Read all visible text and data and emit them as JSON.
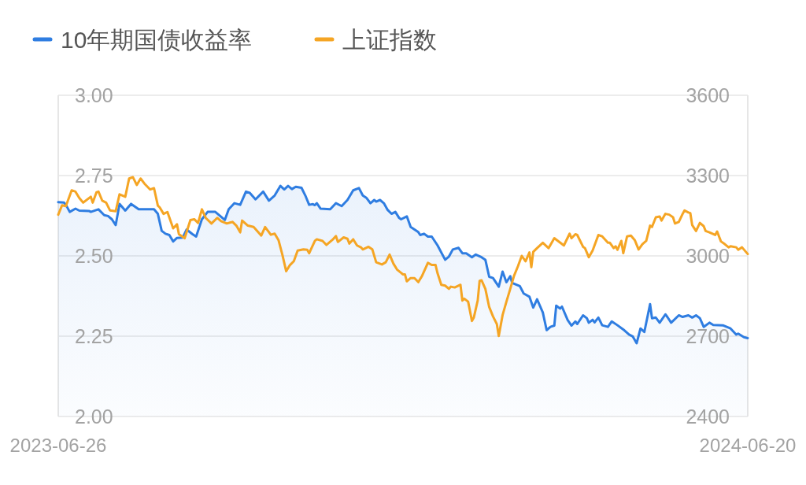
{
  "chart_data": {
    "type": "line",
    "legend": "top left",
    "grid": "y",
    "xlim": [
      "2023-06-26",
      "2024-06-20"
    ],
    "xticks": [
      "2023-06-26",
      "2024-06-20"
    ],
    "ylim": [
      2,
      3
    ],
    "yticks": [
      {
        "value": 2,
        "label": "2.00"
      },
      {
        "value": 2.25,
        "label": "2.25"
      },
      {
        "value": 2.5,
        "label": "2.50"
      },
      {
        "value": 2.75,
        "label": "2.75"
      },
      {
        "value": 3,
        "label": "3.00"
      }
    ],
    "y2lim": [
      2400,
      3600
    ],
    "y2ticks": [
      2400,
      2700,
      3000,
      3300,
      3600
    ],
    "series": [
      {
        "name": "10年期国债收益率",
        "type": "area",
        "color": "#2f7de1",
        "x": [
          "2023-06-26",
          "2023-06-29",
          "2023-06-30",
          "2023-07-02",
          "2023-07-05",
          "2023-07-07",
          "2023-07-12",
          "2023-07-13",
          "2023-07-17",
          "2023-07-20",
          "2023-07-22",
          "2023-07-24",
          "2023-07-26",
          "2023-07-28",
          "2023-07-31",
          "2023-08-03",
          "2023-08-07",
          "2023-08-15",
          "2023-08-17",
          "2023-08-19",
          "2023-08-21",
          "2023-08-23",
          "2023-08-25",
          "2023-08-27",
          "2023-08-30",
          "2023-09-01",
          "2023-09-04",
          "2023-09-06",
          "2023-09-09",
          "2023-09-12",
          "2023-09-16",
          "2023-09-21",
          "2023-09-23",
          "2023-09-26",
          "2023-09-29",
          "2023-10-02",
          "2023-10-04",
          "2023-10-07",
          "2023-10-11",
          "2023-10-14",
          "2023-10-17",
          "2023-10-20",
          "2023-10-22",
          "2023-10-24",
          "2023-10-26",
          "2023-10-28",
          "2023-10-31",
          "2023-11-02",
          "2023-11-04",
          "2023-11-06",
          "2023-11-07",
          "2023-11-08",
          "2023-11-10",
          "2023-11-15",
          "2023-11-18",
          "2023-11-21",
          "2023-11-24",
          "2023-11-27",
          "2023-11-30",
          "2023-12-02",
          "2023-12-04",
          "2023-12-06",
          "2023-12-08",
          "2023-12-09",
          "2023-12-11",
          "2023-12-13",
          "2023-12-15",
          "2023-12-17",
          "2023-12-19",
          "2023-12-21",
          "2023-12-22",
          "2023-12-25",
          "2023-12-27",
          "2023-12-29",
          "2023-12-31",
          "2024-01-01",
          "2024-01-03",
          "2024-01-05",
          "2024-01-07",
          "2024-01-10",
          "2024-01-14",
          "2024-01-16",
          "2024-01-18",
          "2024-01-21",
          "2024-01-23",
          "2024-01-25",
          "2024-01-28",
          "2024-01-30",
          "2024-02-02",
          "2024-02-04",
          "2024-02-06",
          "2024-02-08",
          "2024-02-11",
          "2024-02-13",
          "2024-02-15",
          "2024-02-17",
          "2024-02-18",
          "2024-02-22",
          "2024-02-24",
          "2024-02-27",
          "2024-02-29",
          "2024-03-02",
          "2024-03-05",
          "2024-03-07",
          "2024-03-09",
          "2024-03-11",
          "2024-03-12",
          "2024-03-14",
          "2024-03-15",
          "2024-03-18",
          "2024-03-20",
          "2024-03-22",
          "2024-03-23",
          "2024-03-26",
          "2024-03-28",
          "2024-03-29",
          "2024-03-31",
          "2024-04-01",
          "2024-04-03",
          "2024-04-05",
          "2024-04-08",
          "2024-04-10",
          "2024-04-13",
          "2024-04-16",
          "2024-04-19",
          "2024-04-21",
          "2024-04-23",
          "2024-04-25",
          "2024-04-27",
          "2024-04-30",
          "2024-05-01",
          "2024-05-03",
          "2024-05-05",
          "2024-05-08",
          "2024-05-09",
          "2024-05-11",
          "2024-05-15",
          "2024-05-17",
          "2024-05-20",
          "2024-05-22",
          "2024-05-24",
          "2024-05-26",
          "2024-05-28",
          "2024-05-31",
          "2024-06-02",
          "2024-06-07",
          "2024-06-11",
          "2024-06-14",
          "2024-06-15",
          "2024-06-18",
          "2024-06-20"
        ],
        "values": [
          2.667,
          2.666,
          2.659,
          2.637,
          2.647,
          2.641,
          2.64,
          2.637,
          2.645,
          2.627,
          2.624,
          2.614,
          2.596,
          2.662,
          2.641,
          2.662,
          2.645,
          2.645,
          2.631,
          2.578,
          2.569,
          2.565,
          2.545,
          2.556,
          2.557,
          2.582,
          2.568,
          2.56,
          2.614,
          2.637,
          2.637,
          2.612,
          2.645,
          2.664,
          2.659,
          2.7,
          2.696,
          2.676,
          2.7,
          2.672,
          2.688,
          2.718,
          2.707,
          2.718,
          2.708,
          2.715,
          2.712,
          2.688,
          2.659,
          2.661,
          2.658,
          2.664,
          2.647,
          2.645,
          2.664,
          2.655,
          2.674,
          2.704,
          2.711,
          2.688,
          2.68,
          2.664,
          2.674,
          2.669,
          2.674,
          2.664,
          2.643,
          2.631,
          2.637,
          2.618,
          2.614,
          2.623,
          2.59,
          2.582,
          2.574,
          2.565,
          2.569,
          2.56,
          2.56,
          2.533,
          2.488,
          2.498,
          2.52,
          2.525,
          2.508,
          2.508,
          2.496,
          2.504,
          2.496,
          2.488,
          2.435,
          2.431,
          2.404,
          2.451,
          2.418,
          2.437,
          2.416,
          2.406,
          2.383,
          2.373,
          2.339,
          2.365,
          2.324,
          2.269,
          2.279,
          2.283,
          2.345,
          2.336,
          2.342,
          2.3,
          2.283,
          2.296,
          2.288,
          2.315,
          2.306,
          2.292,
          2.301,
          2.293,
          2.308,
          2.284,
          2.279,
          2.296,
          2.284,
          2.271,
          2.255,
          2.249,
          2.228,
          2.274,
          2.263,
          2.35,
          2.306,
          2.308,
          2.292,
          2.318,
          2.31,
          2.292,
          2.315,
          2.31,
          2.315,
          2.308,
          2.315,
          2.306,
          2.279,
          2.292,
          2.285,
          2.284,
          2.274,
          2.255,
          2.258,
          2.247,
          2.244
        ]
      },
      {
        "name": "上证指数",
        "type": "line",
        "axis": "y2",
        "color": "#f5a524",
        "x": [
          "2023-06-26",
          "2023-06-28",
          "2023-06-30",
          "2023-07-03",
          "2023-07-05",
          "2023-07-07",
          "2023-07-09",
          "2023-07-13",
          "2023-07-14",
          "2023-07-16",
          "2023-07-17",
          "2023-07-19",
          "2023-07-21",
          "2023-07-23",
          "2023-07-26",
          "2023-07-28",
          "2023-07-31",
          "2023-08-02",
          "2023-08-04",
          "2023-08-06",
          "2023-08-08",
          "2023-08-10",
          "2023-08-13",
          "2023-08-15",
          "2023-08-17",
          "2023-08-18",
          "2023-08-20",
          "2023-08-22",
          "2023-08-25",
          "2023-08-27",
          "2023-08-28",
          "2023-08-31",
          "2023-09-03",
          "2023-09-05",
          "2023-09-07",
          "2023-09-09",
          "2023-09-11",
          "2023-09-14",
          "2023-09-17",
          "2023-09-19",
          "2023-09-22",
          "2023-09-24",
          "2023-09-25",
          "2023-09-27",
          "2023-09-29",
          "2023-09-30",
          "2023-10-03",
          "2023-10-06",
          "2023-10-10",
          "2023-10-12",
          "2023-10-15",
          "2023-10-17",
          "2023-10-19",
          "2023-10-21",
          "2023-10-23",
          "2023-10-25",
          "2023-10-27",
          "2023-10-29",
          "2023-11-01",
          "2023-11-03",
          "2023-11-04",
          "2023-11-07",
          "2023-11-08",
          "2023-11-11",
          "2023-11-13",
          "2023-11-16",
          "2023-11-18",
          "2023-11-19",
          "2023-11-22",
          "2023-11-24",
          "2023-11-25",
          "2023-11-27",
          "2023-11-29",
          "2023-12-01",
          "2023-12-02",
          "2023-12-05",
          "2023-12-07",
          "2023-12-09",
          "2023-12-12",
          "2023-12-14",
          "2023-12-16",
          "2023-12-18",
          "2023-12-20",
          "2023-12-23",
          "2023-12-24",
          "2023-12-25",
          "2023-12-27",
          "2023-12-29",
          "2023-12-31",
          "2024-01-02",
          "2024-01-05",
          "2024-01-07",
          "2024-01-09",
          "2024-01-10",
          "2024-01-12",
          "2024-01-14",
          "2024-01-16",
          "2024-01-17",
          "2024-01-19",
          "2024-01-22",
          "2024-01-23",
          "2024-01-24",
          "2024-01-26",
          "2024-01-28",
          "2024-01-29",
          "2024-01-31",
          "2024-02-01",
          "2024-02-02",
          "2024-02-04",
          "2024-02-06",
          "2024-02-08",
          "2024-02-10",
          "2024-02-11",
          "2024-02-13",
          "2024-02-15",
          "2024-02-17",
          "2024-02-19",
          "2024-02-21",
          "2024-02-23",
          "2024-02-25",
          "2024-02-27",
          "2024-02-28",
          "2024-02-29",
          "2024-03-02",
          "2024-03-05",
          "2024-03-08",
          "2024-03-11",
          "2024-03-16",
          "2024-03-19",
          "2024-03-20",
          "2024-03-22",
          "2024-03-23",
          "2024-03-26",
          "2024-03-27",
          "2024-03-29",
          "2024-03-31",
          "2024-04-03",
          "2024-04-05",
          "2024-04-08",
          "2024-04-09",
          "2024-04-11",
          "2024-04-12",
          "2024-04-13",
          "2024-04-15",
          "2024-04-16",
          "2024-04-18",
          "2024-04-20",
          "2024-04-22",
          "2024-04-24",
          "2024-04-26",
          "2024-04-28",
          "2024-04-30",
          "2024-05-01",
          "2024-05-03",
          "2024-05-05",
          "2024-05-06",
          "2024-05-08",
          "2024-05-10",
          "2024-05-12",
          "2024-05-13",
          "2024-05-15",
          "2024-05-17",
          "2024-05-18",
          "2024-05-20",
          "2024-05-21",
          "2024-05-22",
          "2024-05-24",
          "2024-05-26",
          "2024-05-28",
          "2024-05-29",
          "2024-05-31",
          "2024-06-03",
          "2024-06-04",
          "2024-06-06",
          "2024-06-08",
          "2024-06-10",
          "2024-06-11",
          "2024-06-14",
          "2024-06-15",
          "2024-06-17",
          "2024-06-20"
        ],
        "values": [
          3154,
          3189,
          3186,
          3245,
          3240,
          3216,
          3199,
          3221,
          3199,
          3238,
          3240,
          3206,
          3199,
          3170,
          3167,
          3230,
          3221,
          3289,
          3294,
          3265,
          3289,
          3270,
          3248,
          3253,
          3188,
          3181,
          3157,
          3164,
          3103,
          3118,
          3081,
          3066,
          3134,
          3137,
          3123,
          3174,
          3142,
          3121,
          3142,
          3130,
          3121,
          3125,
          3127,
          3113,
          3088,
          3132,
          3113,
          3108,
          3076,
          3108,
          3079,
          3083,
          3059,
          3005,
          2943,
          2966,
          2980,
          3020,
          3024,
          3023,
          3010,
          3056,
          3062,
          3056,
          3041,
          3059,
          3074,
          3052,
          3069,
          3064,
          3046,
          3062,
          3039,
          3032,
          3024,
          3034,
          3024,
          2976,
          2968,
          2976,
          3005,
          2971,
          2948,
          2931,
          2931,
          2905,
          2917,
          2917,
          2902,
          2926,
          2974,
          2966,
          2966,
          2936,
          2892,
          2889,
          2877,
          2885,
          2882,
          2892,
          2833,
          2840,
          2829,
          2757,
          2770,
          2833,
          2907,
          2909,
          2877,
          2809,
          2774,
          2745,
          2701,
          2779,
          2829,
          2877,
          2926,
          2961,
          3000,
          2980,
          3013,
          2958,
          3015,
          3029,
          3049,
          3029,
          3066,
          3039,
          3083,
          3066,
          3081,
          3078,
          3034,
          3029,
          2995,
          3020,
          3078,
          3073,
          3049,
          3049,
          3029,
          3036,
          3023,
          3056,
          3010,
          3073,
          3076,
          3059,
          3024,
          3044,
          3056,
          3113,
          3108,
          3144,
          3147,
          3132,
          3157,
          3154,
          3144,
          3121,
          3127,
          3157,
          3170,
          3162,
          3160,
          3115,
          3093,
          3123,
          3111,
          3093,
          3088,
          3078,
          3091,
          3054,
          3044,
          3032,
          3036,
          3032,
          3023,
          3032,
          3007
        ]
      }
    ]
  }
}
